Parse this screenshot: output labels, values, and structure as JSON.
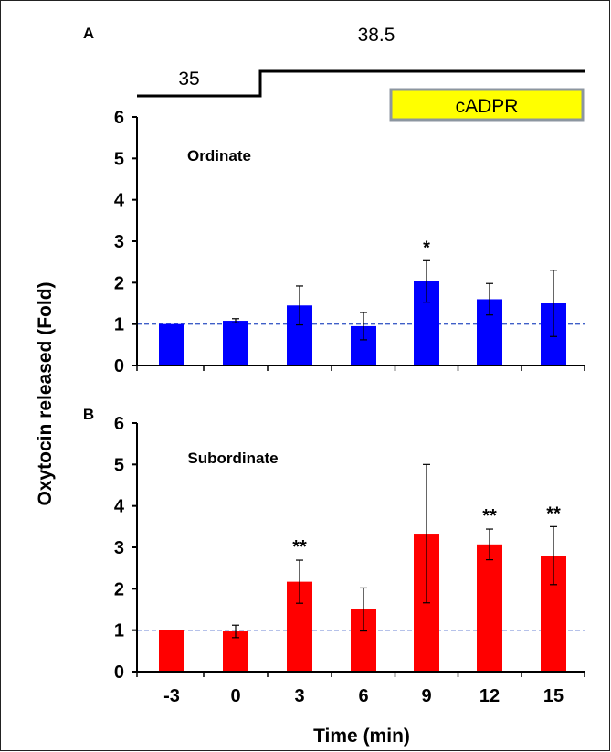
{
  "figure": {
    "ylabel": "Oxytocin released (Fold)",
    "xlabel": "Time (min)",
    "temperature_labels": [
      "35",
      "38.5"
    ],
    "treatment_label": "cADPR",
    "treatment_color": "#ffff00",
    "reference_line_value": 1,
    "reference_line_color": "#3f5fc8"
  },
  "chart_data": [
    {
      "type": "bar",
      "panel_label": "A",
      "title": "Ordinate",
      "categories": [
        "-3",
        "0",
        "3",
        "6",
        "9",
        "12",
        "15"
      ],
      "values": [
        1.0,
        1.08,
        1.45,
        0.95,
        2.03,
        1.6,
        1.5
      ],
      "error": [
        0.0,
        0.05,
        0.47,
        0.33,
        0.5,
        0.38,
        0.8
      ],
      "significance": [
        "",
        "",
        "",
        "",
        "*",
        "",
        ""
      ],
      "ylim": [
        0,
        6
      ],
      "yticks": [
        "0",
        "1",
        "2",
        "3",
        "4",
        "5",
        "6"
      ],
      "color": "#0000ff",
      "grid": false
    },
    {
      "type": "bar",
      "panel_label": "B",
      "title": "Subordinate",
      "categories": [
        "-3",
        "0",
        "3",
        "6",
        "9",
        "12",
        "15"
      ],
      "values": [
        1.0,
        0.97,
        2.17,
        1.5,
        3.33,
        3.07,
        2.8
      ],
      "error": [
        0.0,
        0.15,
        0.52,
        0.52,
        1.67,
        0.37,
        0.7
      ],
      "significance": [
        "",
        "",
        "**",
        "",
        "",
        "**",
        "**"
      ],
      "ylim": [
        0,
        6
      ],
      "yticks": [
        "0",
        "1",
        "2",
        "3",
        "4",
        "5",
        "6"
      ],
      "color": "#ff0000",
      "grid": false
    }
  ]
}
